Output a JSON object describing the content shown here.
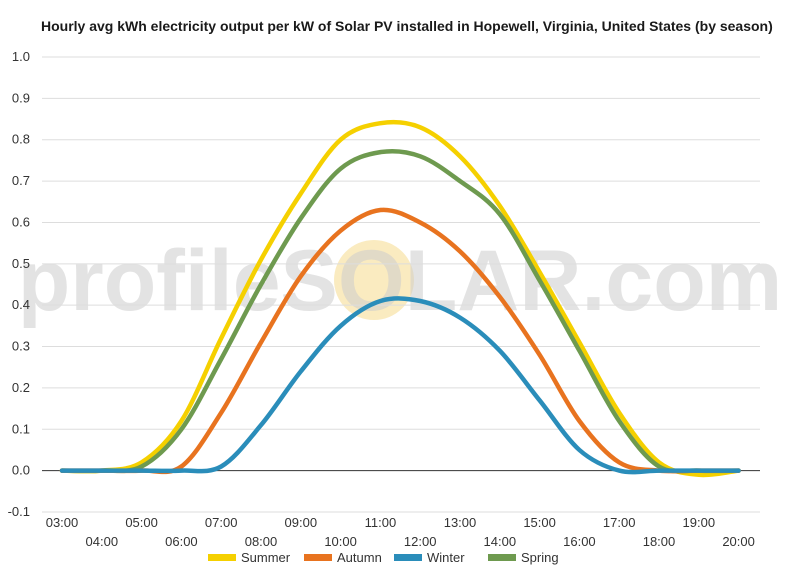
{
  "chart_data": {
    "type": "line",
    "title": "Hourly avg kWh electricity output per kW of Solar PV installed in Hopewell, Virginia, United States (by season)",
    "xlabel": "",
    "ylabel": "",
    "ylim": [
      -0.1,
      1.0
    ],
    "yticks": [
      "-0.1",
      "0.0",
      "0.1",
      "0.2",
      "0.3",
      "0.4",
      "0.5",
      "0.6",
      "0.7",
      "0.8",
      "0.9",
      "1.0"
    ],
    "categories": [
      "03:00",
      "04:00",
      "05:00",
      "06:00",
      "07:00",
      "08:00",
      "09:00",
      "10:00",
      "11:00",
      "12:00",
      "13:00",
      "14:00",
      "15:00",
      "16:00",
      "17:00",
      "18:00",
      "19:00",
      "20:00"
    ],
    "grid": true,
    "legend_position": "bottom",
    "watermark": "profileSOLAR.com",
    "series": [
      {
        "name": "Summer",
        "color": "#f5d000",
        "values": [
          0.0,
          0.0,
          0.02,
          0.12,
          0.32,
          0.51,
          0.67,
          0.8,
          0.84,
          0.83,
          0.76,
          0.64,
          0.48,
          0.31,
          0.14,
          0.02,
          -0.01,
          0.0
        ]
      },
      {
        "name": "Autumn",
        "color": "#e8731f",
        "values": [
          0.0,
          0.0,
          0.0,
          0.01,
          0.14,
          0.31,
          0.47,
          0.58,
          0.63,
          0.6,
          0.53,
          0.42,
          0.28,
          0.12,
          0.02,
          0.0,
          0.0,
          0.0
        ]
      },
      {
        "name": "Winter",
        "color": "#2a8dba",
        "values": [
          0.0,
          0.0,
          0.0,
          0.0,
          0.01,
          0.11,
          0.24,
          0.35,
          0.41,
          0.41,
          0.37,
          0.29,
          0.17,
          0.05,
          0.0,
          0.0,
          0.0,
          0.0
        ]
      },
      {
        "name": "Spring",
        "color": "#6e9a4f",
        "values": [
          0.0,
          0.0,
          0.01,
          0.1,
          0.27,
          0.45,
          0.61,
          0.73,
          0.77,
          0.76,
          0.7,
          0.62,
          0.46,
          0.29,
          0.12,
          0.01,
          0.0,
          0.0
        ]
      }
    ]
  }
}
